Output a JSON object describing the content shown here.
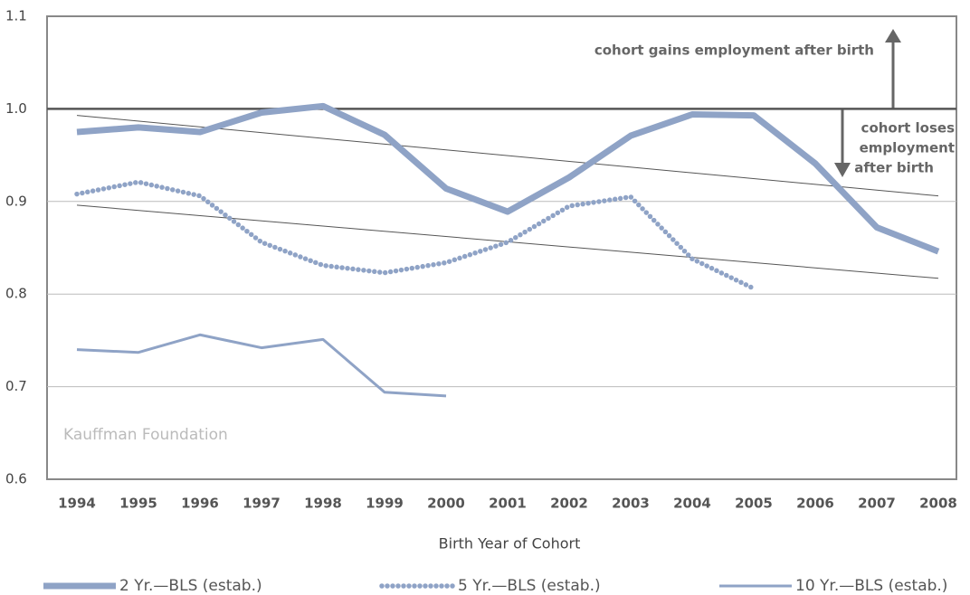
{
  "chart_data": {
    "type": "line",
    "categories": [
      "1994",
      "1995",
      "1996",
      "1997",
      "1998",
      "1999",
      "2000",
      "2001",
      "2002",
      "2003",
      "2004",
      "2005",
      "2006",
      "2007",
      "2008"
    ],
    "series": [
      {
        "name": "2 Yr.—BLS (estab.)",
        "color": "#8fa3c6",
        "style": "thick",
        "values": [
          0.975,
          0.98,
          0.975,
          0.996,
          1.003,
          0.972,
          0.914,
          0.889,
          0.926,
          0.971,
          0.994,
          0.993,
          0.941,
          0.872,
          0.846
        ]
      },
      {
        "name": "5 Yr.—BLS (estab.)",
        "color": "#8fa3c6",
        "style": "dotted",
        "values": [
          0.908,
          0.921,
          0.906,
          0.856,
          0.831,
          0.823,
          0.834,
          0.856,
          0.895,
          0.905,
          0.838,
          0.806,
          null,
          null,
          null
        ]
      },
      {
        "name": "10 Yr.—BLS (estab.)",
        "color": "#8fa3c6",
        "style": "thin",
        "values": [
          0.74,
          0.737,
          0.756,
          0.742,
          0.751,
          0.694,
          0.69,
          null,
          null,
          null,
          null,
          null,
          null,
          null,
          null
        ]
      }
    ],
    "trendlines": [
      [
        0.993,
        0.906
      ],
      [
        0.896,
        0.817
      ]
    ],
    "ylim": [
      0.6,
      1.1
    ],
    "yticks": [
      0.6,
      0.7,
      0.8,
      0.9,
      {
        "value": 1,
        "label": "1.0"
      },
      1.1
    ],
    "reference_line": 1,
    "grid": true,
    "x_label": "Birth Year of Cohort",
    "annotations": {
      "gains": "cohort gains employment after birth",
      "loses": [
        "cohort  loses",
        "employment",
        "after birth"
      ]
    },
    "watermark": "Kauffman Foundation"
  }
}
